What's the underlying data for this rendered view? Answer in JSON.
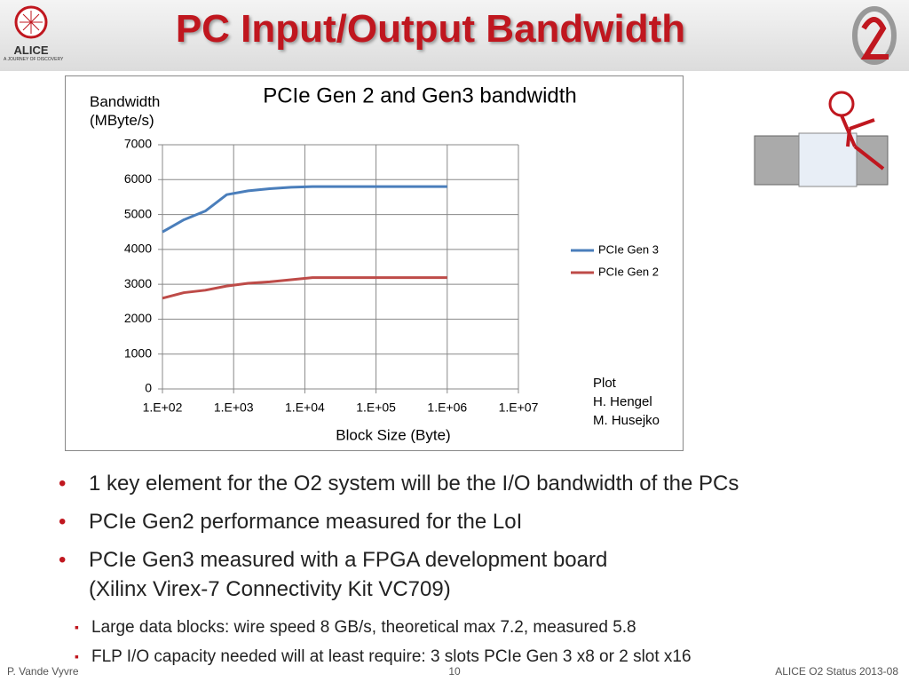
{
  "header": {
    "title": "PC Input/Output Bandwidth",
    "logo_text": "ALICE",
    "logo_subtext": "A JOURNEY OF DISCOVERY"
  },
  "chart_data": {
    "type": "line",
    "title": "PCIe Gen 2 and Gen3 bandwidth",
    "ylabel": "Bandwidth (MByte/s)",
    "xlabel": "Block Size (Byte)",
    "x": [
      100,
      200,
      400,
      800,
      1600,
      3200,
      6400,
      12800,
      100000,
      1000000
    ],
    "series": [
      {
        "name": "PCIe Gen 3",
        "color": "#4a7ebb",
        "values": [
          4500,
          4850,
          5100,
          5570,
          5680,
          5740,
          5780,
          5800,
          5800,
          5800
        ]
      },
      {
        "name": "PCIe Gen 2",
        "color": "#be4b48",
        "values": [
          2600,
          2760,
          2830,
          2950,
          3030,
          3070,
          3130,
          3190,
          3190,
          3190
        ]
      }
    ],
    "xscale": "log",
    "xlim": [
      100,
      10000000
    ],
    "xticks": [
      {
        "value": 100,
        "label": "1.E+02"
      },
      {
        "value": 1000,
        "label": "1.E+03"
      },
      {
        "value": 10000,
        "label": "1.E+04"
      },
      {
        "value": 100000,
        "label": "1.E+05"
      },
      {
        "value": 1000000,
        "label": "1.E+06"
      },
      {
        "value": 10000000,
        "label": "1.E+07"
      }
    ],
    "ylim": [
      0,
      7000
    ],
    "yticks": [
      0,
      1000,
      2000,
      3000,
      4000,
      5000,
      6000,
      7000
    ],
    "grid": true,
    "legend": "right",
    "annotation": [
      "Plot",
      "H. Hengel",
      "M. Husejko"
    ]
  },
  "bullets": [
    {
      "lines": [
        "1 key element for the O2 system will be the I/O bandwidth of  the PCs"
      ]
    },
    {
      "lines": [
        "PCIe Gen2 performance measured for the LoI"
      ]
    },
    {
      "lines": [
        "PCIe Gen3 measured with a FPGA development board",
        "(Xilinx Virex-7 Connectivity Kit VC709)"
      ],
      "sub": [
        "Large data blocks: wire speed 8 GB/s, theoretical max 7.2, measured 5.8",
        "FLP I/O capacity needed will at least require: 3 slots PCIe Gen 3 x8 or 2 slot x16"
      ]
    }
  ],
  "footer": {
    "author": "P. Vande Vyvre",
    "page": "10",
    "event": "ALICE O2 Status 2013-08"
  }
}
